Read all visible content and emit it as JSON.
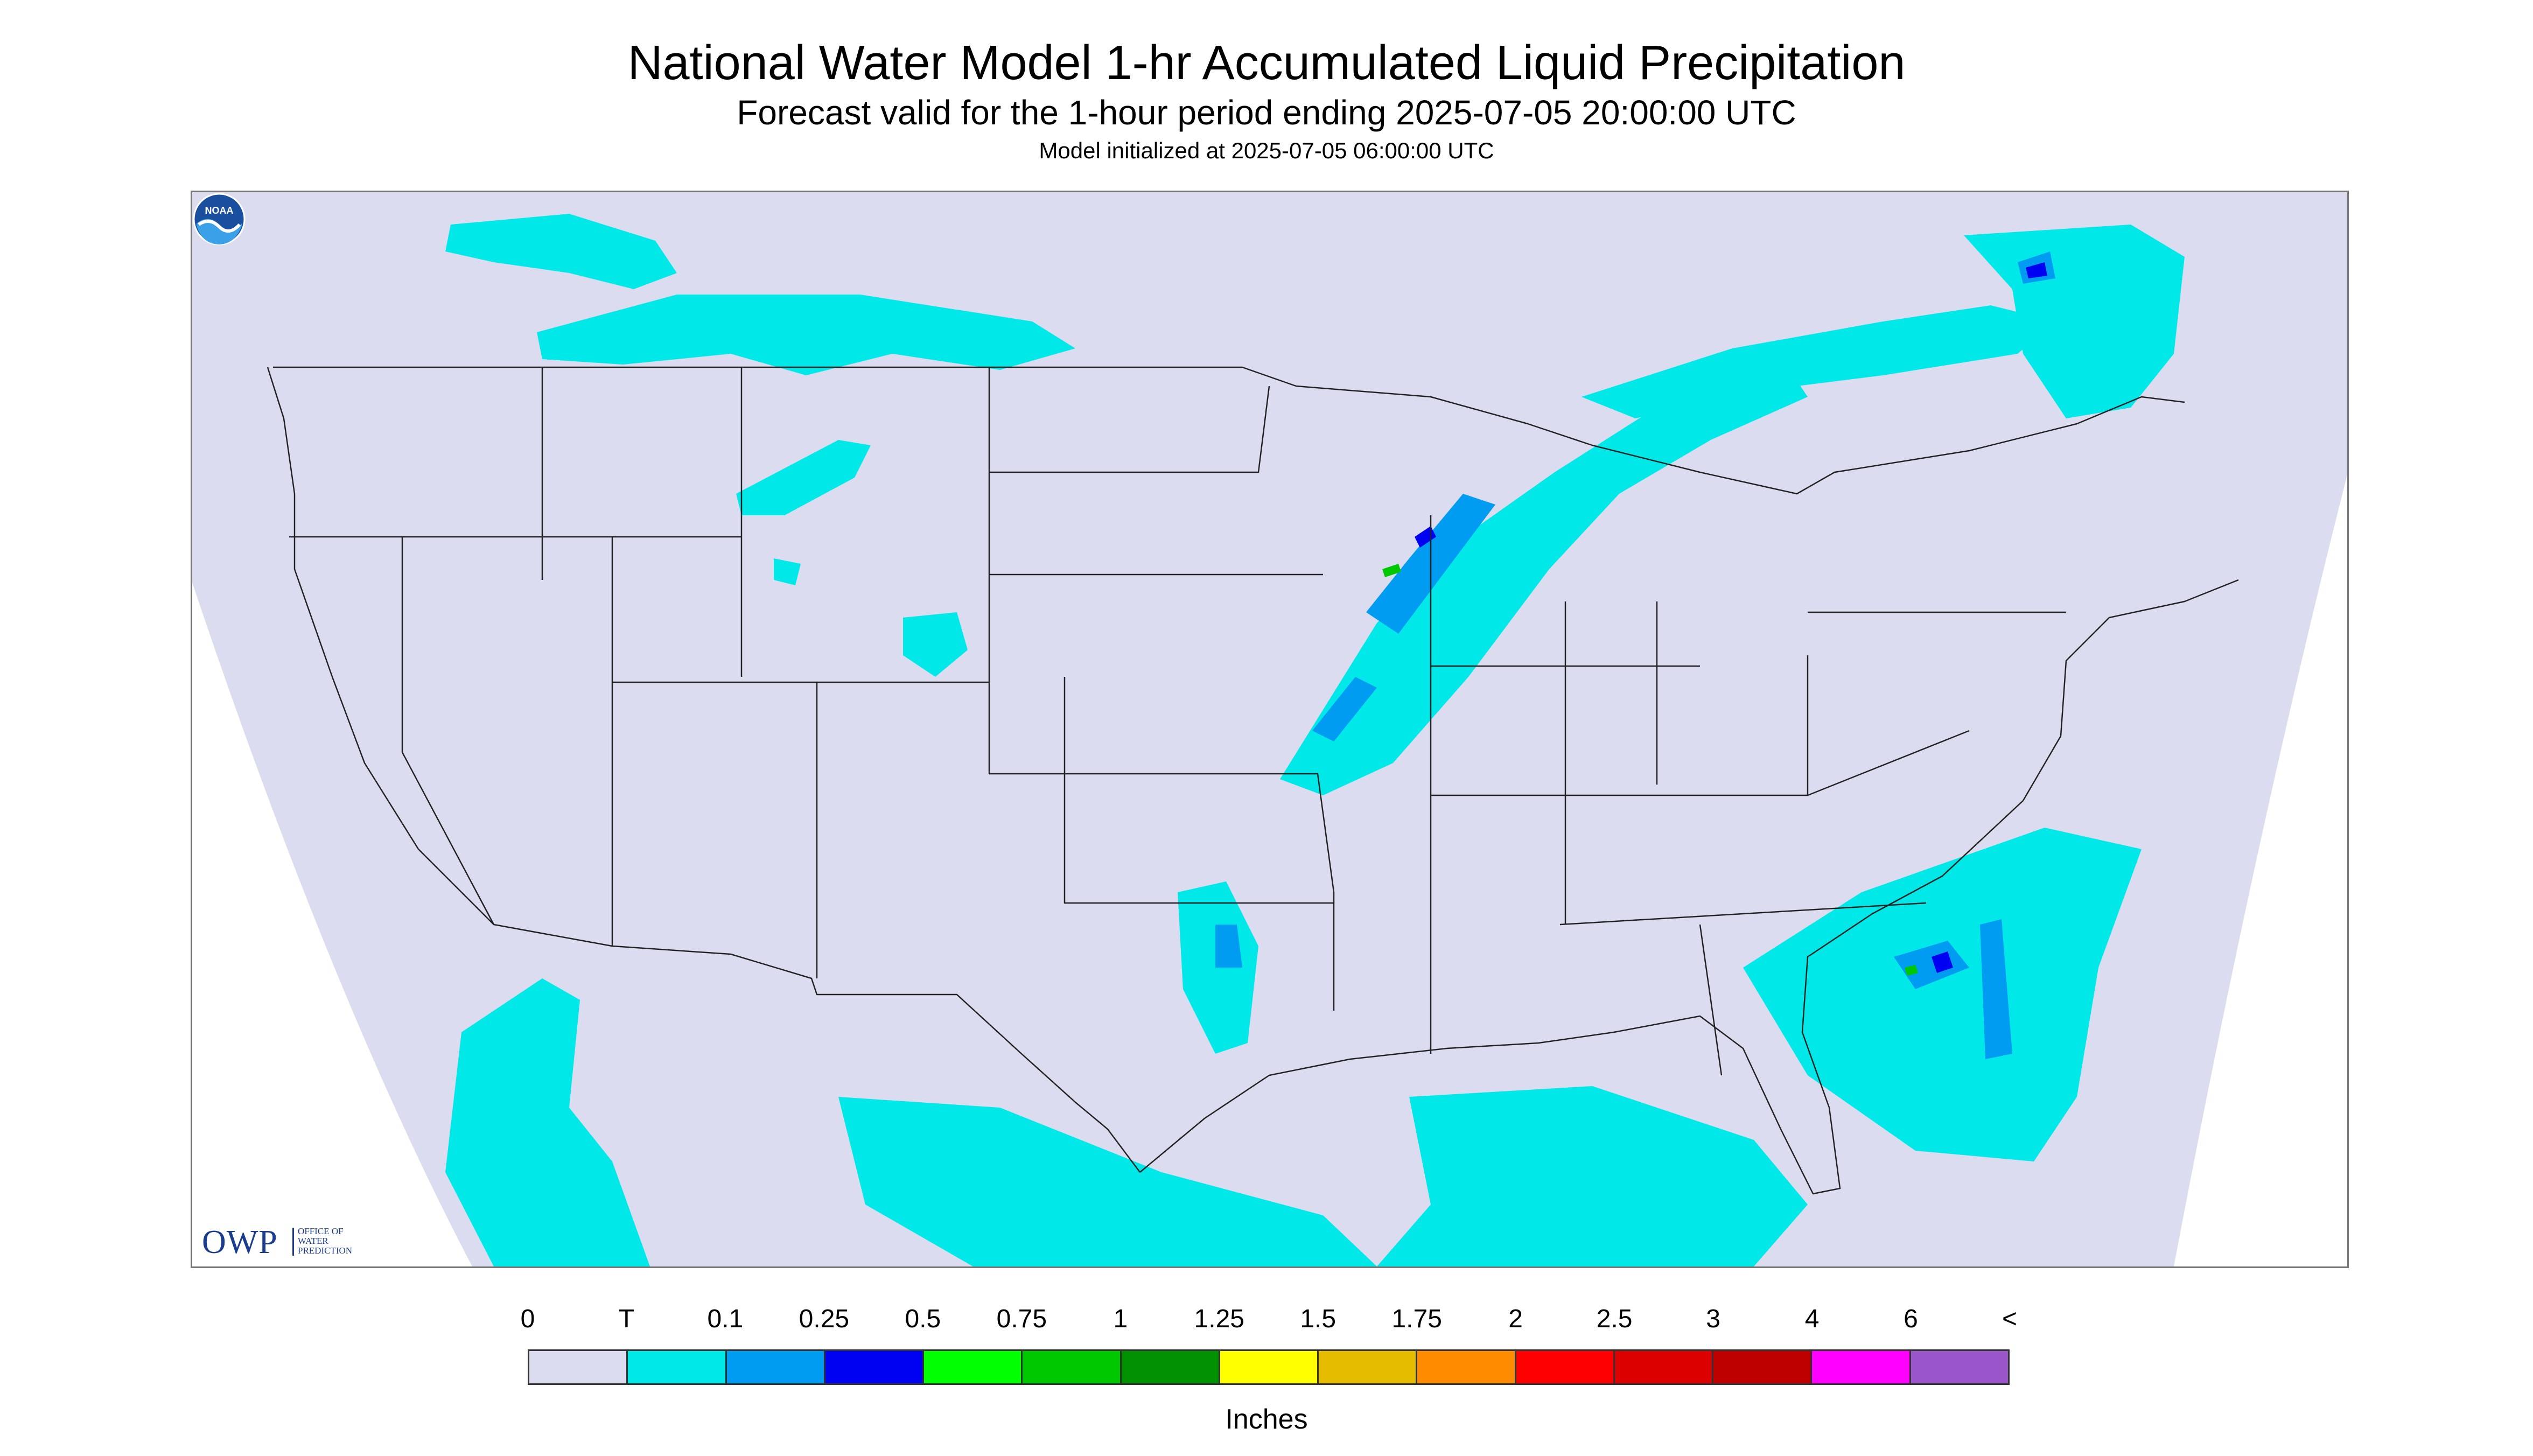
{
  "header": {
    "title": "National Water Model 1-hr Accumulated Liquid Precipitation",
    "subtitle": "Forecast valid for the 1-hour period ending 2025-07-05 20:00:00 UTC",
    "init_line": "Model initialized at 2025-07-05 06:00:00 UTC"
  },
  "logos": {
    "owp_letters": "OWP",
    "owp_lines": [
      "OFFICE OF",
      "WATER",
      "PREDICTION"
    ],
    "noaa_text": "NOAA"
  },
  "legend": {
    "labels": [
      "0",
      "T",
      "0.1",
      "0.25",
      "0.5",
      "0.75",
      "1",
      "1.25",
      "1.5",
      "1.75",
      "2",
      "2.5",
      "3",
      "4",
      "6",
      "<"
    ],
    "colors": [
      "#dcdcf0",
      "#00e8e8",
      "#009cf2",
      "#0000f2",
      "#00ff00",
      "#00c800",
      "#009000",
      "#ffff00",
      "#e6bc00",
      "#ff8c00",
      "#ff0000",
      "#dc0000",
      "#be0000",
      "#ff00ff",
      "#9955c9"
    ],
    "units": "Inches"
  },
  "map": {
    "domain_fill": "#dcdcf0",
    "outside_fill": "#ffffff",
    "border_color": "#222222"
  }
}
